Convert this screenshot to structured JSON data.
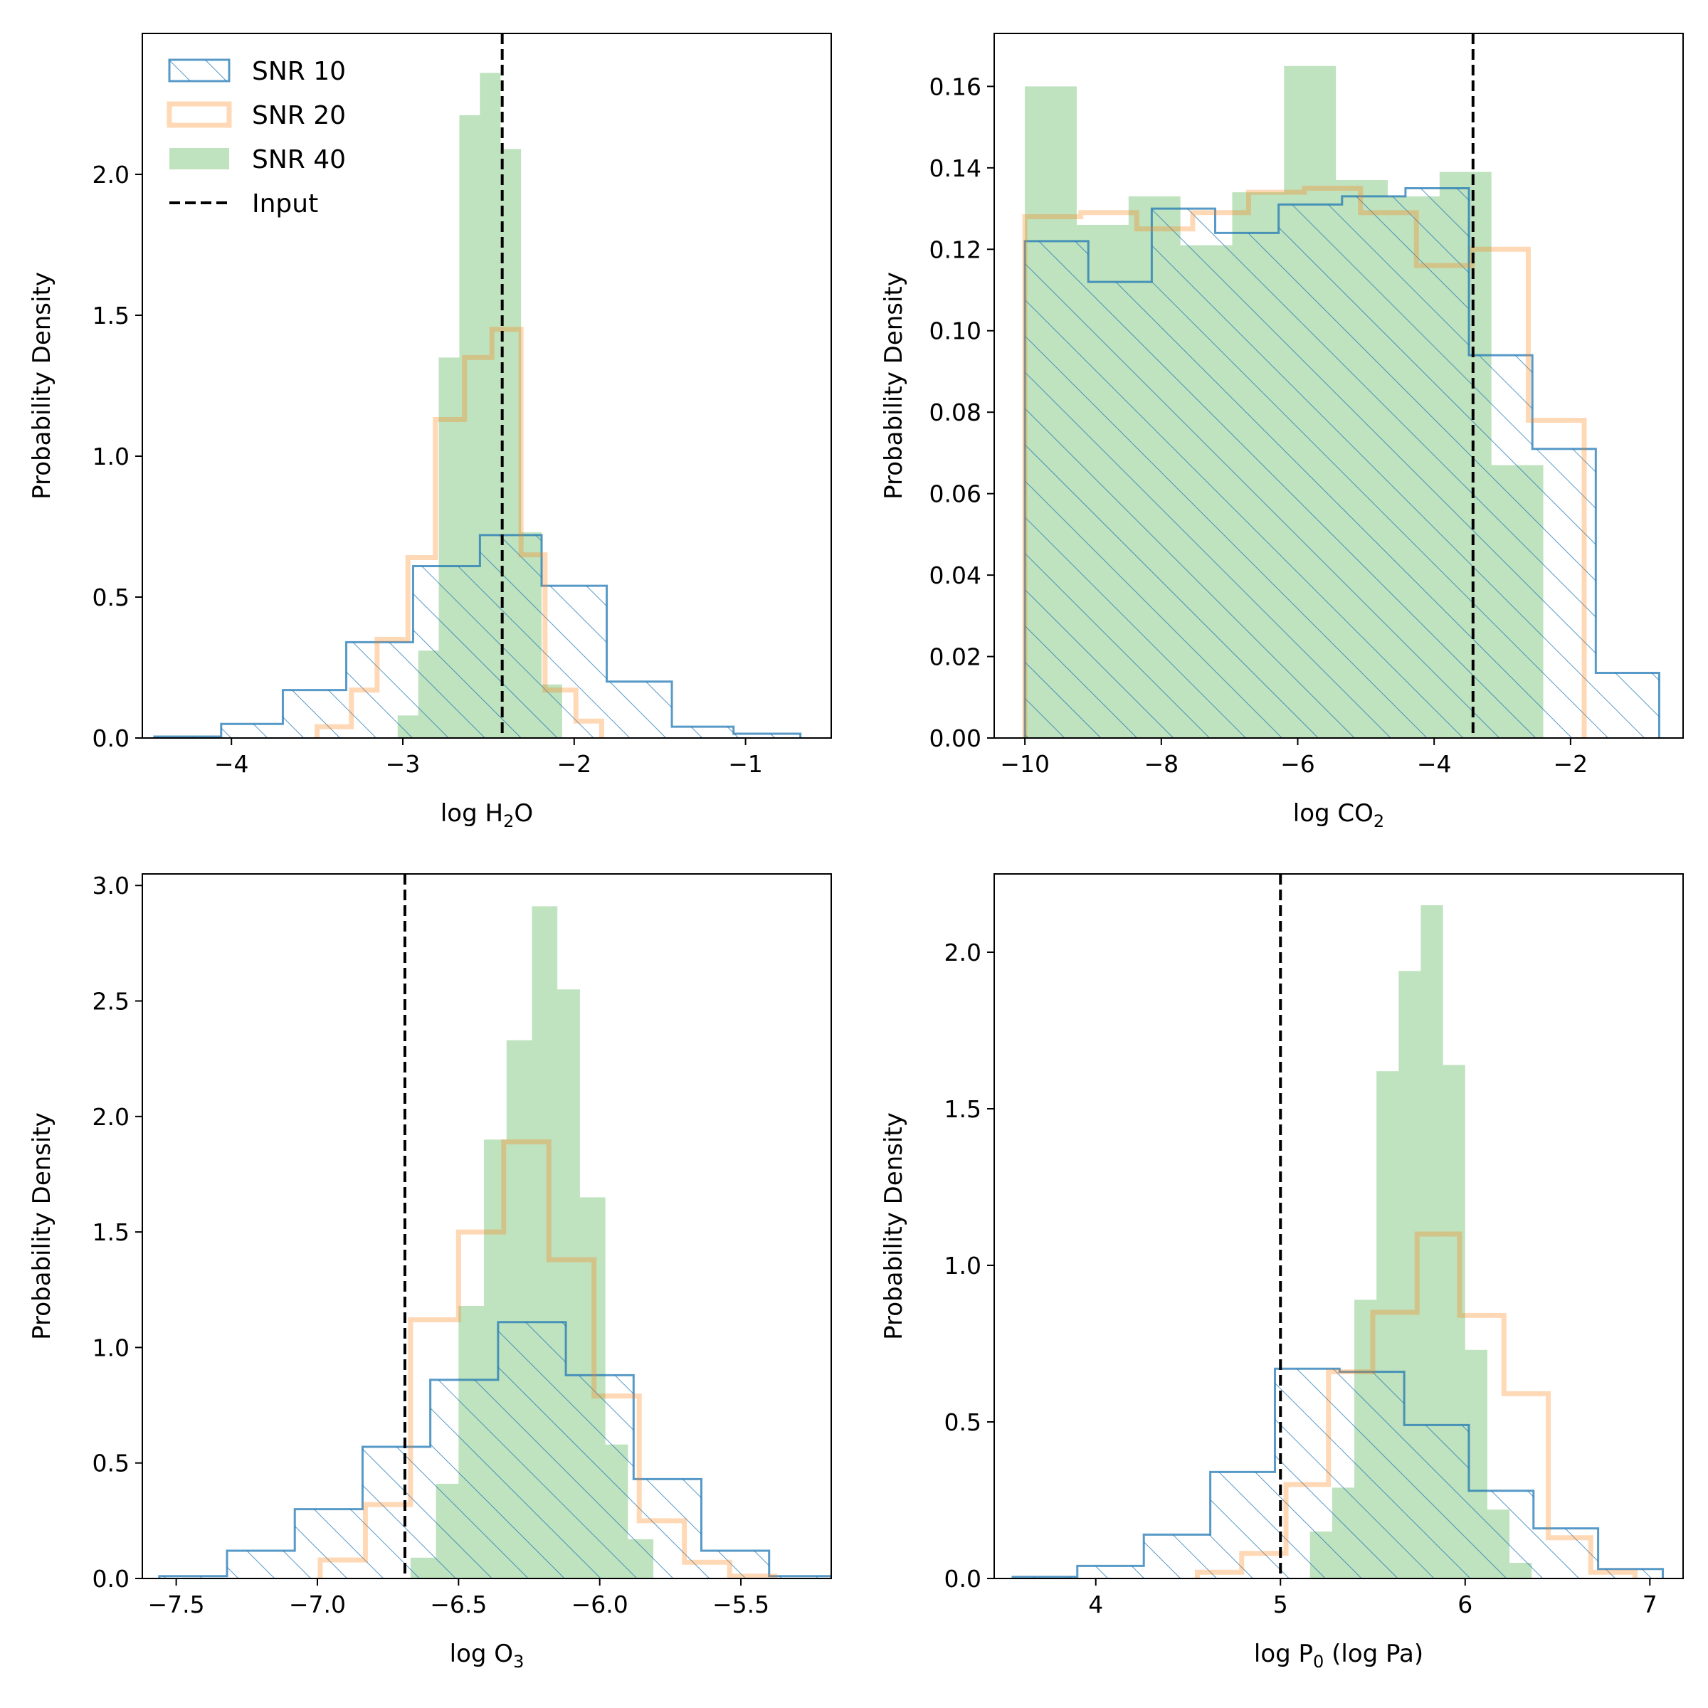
{
  "figure": {
    "series_style": [
      {
        "name": "SNR 10",
        "color": "#1f77b4",
        "style": "hatch-outline",
        "opacity": 0.75
      },
      {
        "name": "SNR 20",
        "color": "#ff7f0e",
        "style": "thick-outline",
        "opacity": 0.3
      },
      {
        "name": "SNR 40",
        "color": "#2ca02c",
        "style": "filled",
        "opacity": 0.3
      }
    ],
    "input_line_color": "#000000",
    "legend_location": "top-left of first panel"
  },
  "chart_data": [
    {
      "type": "histogram",
      "xlabel": "log H",
      "xlabel_sub": "2",
      "xlabel_tail": "O",
      "ylabel": "Probability Density",
      "xlim": [
        -4.52,
        -0.5
      ],
      "ylim": [
        0,
        2.5
      ],
      "xticks": [
        -4,
        -3,
        -2,
        -1
      ],
      "xtick_labels": [
        "−4",
        "−3",
        "−2",
        "−1"
      ],
      "yticks": [
        0,
        0.5,
        1,
        1.5,
        2
      ],
      "ytick_labels": [
        "0.0",
        "0.5",
        "1.0",
        "1.5",
        "2.0"
      ],
      "input": -2.42,
      "legend": [
        "SNR 10",
        "SNR 20",
        "SNR 40",
        "Input"
      ],
      "series": [
        {
          "name": "SNR 10",
          "edges": [
            -4.45,
            -4.06,
            -3.7,
            -3.33,
            -2.94,
            -2.55,
            -2.19,
            -1.81,
            -1.43,
            -1.07,
            -0.68
          ],
          "values": [
            0.005,
            0.05,
            0.17,
            0.34,
            0.61,
            0.72,
            0.54,
            0.2,
            0.04,
            0.015
          ]
        },
        {
          "name": "SNR 20",
          "edges": [
            -3.5,
            -3.3,
            -3.15,
            -2.97,
            -2.81,
            -2.64,
            -2.48,
            -2.31,
            -2.17,
            -1.99,
            -1.84
          ],
          "values": [
            0.04,
            0.17,
            0.35,
            0.64,
            1.13,
            1.35,
            1.45,
            0.65,
            0.17,
            0.06
          ]
        },
        {
          "name": "SNR 40",
          "edges": [
            -3.03,
            -2.91,
            -2.79,
            -2.67,
            -2.55,
            -2.43,
            -2.31,
            -2.19,
            -2.07
          ],
          "values": [
            0.08,
            0.31,
            1.35,
            2.21,
            2.36,
            2.09,
            0.73,
            0.19,
            0.07
          ]
        }
      ]
    },
    {
      "type": "histogram",
      "xlabel": "log CO",
      "xlabel_sub": "2",
      "xlabel_tail": "",
      "ylabel": "Probability Density",
      "xlim": [
        -10.45,
        -0.35
      ],
      "ylim": [
        0,
        0.173
      ],
      "xticks": [
        -10,
        -8,
        -6,
        -4,
        -2
      ],
      "xtick_labels": [
        "−10",
        "−8",
        "−6",
        "−4",
        "−2"
      ],
      "yticks": [
        0,
        0.02,
        0.04,
        0.06,
        0.08,
        0.1,
        0.12,
        0.14,
        0.16
      ],
      "ytick_labels": [
        "0.00",
        "0.02",
        "0.04",
        "0.06",
        "0.08",
        "0.10",
        "0.12",
        "0.14",
        "0.16"
      ],
      "input": -3.43,
      "legend": [],
      "series": [
        {
          "name": "SNR 10",
          "edges": [
            -10.0,
            -9.07,
            -8.14,
            -7.21,
            -6.28,
            -5.35,
            -4.42,
            -3.49,
            -2.56,
            -1.63,
            -0.7
          ],
          "values": [
            0.122,
            0.112,
            0.13,
            0.124,
            0.131,
            0.133,
            0.135,
            0.094,
            0.071,
            0.016
          ]
        },
        {
          "name": "SNR 20",
          "edges": [
            -10.0,
            -9.18,
            -8.36,
            -7.54,
            -6.72,
            -5.9,
            -5.08,
            -4.26,
            -3.44,
            -2.62,
            -1.8
          ],
          "values": [
            0.128,
            0.129,
            0.125,
            0.129,
            0.134,
            0.135,
            0.129,
            0.116,
            0.12,
            0.078
          ]
        },
        {
          "name": "SNR 40",
          "edges": [
            -10.0,
            -9.24,
            -8.48,
            -7.72,
            -6.96,
            -6.2,
            -5.44,
            -4.68,
            -3.92,
            -3.16,
            -2.4
          ],
          "values": [
            0.16,
            0.126,
            0.133,
            0.121,
            0.134,
            0.165,
            0.137,
            0.133,
            0.139,
            0.067
          ]
        }
      ]
    },
    {
      "type": "histogram",
      "xlabel": "log O",
      "xlabel_sub": "3",
      "xlabel_tail": "",
      "ylabel": "Probability Density",
      "xlim": [
        -7.62,
        -5.18
      ],
      "ylim": [
        0,
        3.05
      ],
      "xticks": [
        -7.5,
        -7.0,
        -6.5,
        -6.0,
        -5.5
      ],
      "xtick_labels": [
        "−7.5",
        "−7.0",
        "−6.5",
        "−6.0",
        "−5.5"
      ],
      "yticks": [
        0,
        0.5,
        1,
        1.5,
        2,
        2.5,
        3
      ],
      "ytick_labels": [
        "0.0",
        "0.5",
        "1.0",
        "1.5",
        "2.0",
        "2.5",
        "3.0"
      ],
      "input": -6.69,
      "legend": [],
      "series": [
        {
          "name": "SNR 10",
          "edges": [
            -7.56,
            -7.32,
            -7.08,
            -6.84,
            -6.6,
            -6.36,
            -6.12,
            -5.88,
            -5.64,
            -5.4,
            -5.16
          ],
          "values": [
            0.01,
            0.12,
            0.3,
            0.57,
            0.86,
            1.11,
            0.88,
            0.43,
            0.12,
            0.01
          ]
        },
        {
          "name": "SNR 20",
          "edges": [
            -6.99,
            -6.83,
            -6.67,
            -6.5,
            -6.34,
            -6.18,
            -6.02,
            -5.86,
            -5.7,
            -5.54,
            -5.38
          ],
          "values": [
            0.08,
            0.32,
            1.12,
            1.5,
            1.89,
            1.38,
            0.79,
            0.25,
            0.07,
            0.01
          ]
        },
        {
          "name": "SNR 40",
          "edges": [
            -6.67,
            -6.58,
            -6.5,
            -6.41,
            -6.33,
            -6.24,
            -6.15,
            -6.07,
            -5.98,
            -5.9,
            -5.81
          ],
          "values": [
            0.09,
            0.41,
            1.18,
            1.9,
            2.33,
            2.91,
            2.55,
            1.65,
            0.58,
            0.17
          ]
        }
      ]
    },
    {
      "type": "histogram",
      "xlabel": "log P",
      "xlabel_sub": "0",
      "xlabel_tail": " (log Pa)",
      "ylabel": "Probability Density",
      "xlim": [
        3.45,
        7.18
      ],
      "ylim": [
        0,
        2.25
      ],
      "xticks": [
        4,
        5,
        6,
        7
      ],
      "xtick_labels": [
        "4",
        "5",
        "6",
        "7"
      ],
      "yticks": [
        0,
        0.5,
        1,
        1.5,
        2
      ],
      "ytick_labels": [
        "0.0",
        "0.5",
        "1.0",
        "1.5",
        "2.0"
      ],
      "input": 5.0,
      "legend": [],
      "series": [
        {
          "name": "SNR 10",
          "edges": [
            3.55,
            3.9,
            4.26,
            4.62,
            4.97,
            5.32,
            5.67,
            6.02,
            6.37,
            6.72,
            7.07
          ],
          "values": [
            0.005,
            0.04,
            0.14,
            0.34,
            0.67,
            0.66,
            0.49,
            0.28,
            0.16,
            0.03
          ]
        },
        {
          "name": "SNR 20",
          "edges": [
            4.55,
            4.79,
            5.03,
            5.26,
            5.5,
            5.74,
            5.97,
            6.21,
            6.45,
            6.68,
            6.92
          ],
          "values": [
            0.02,
            0.08,
            0.3,
            0.66,
            0.85,
            1.1,
            0.84,
            0.59,
            0.13,
            0.02
          ]
        },
        {
          "name": "SNR 40",
          "edges": [
            5.16,
            5.28,
            5.4,
            5.52,
            5.64,
            5.76,
            5.88,
            6.0,
            6.12,
            6.24,
            6.36
          ],
          "values": [
            0.15,
            0.29,
            0.89,
            1.62,
            1.94,
            2.15,
            1.64,
            0.73,
            0.22,
            0.05
          ]
        }
      ]
    }
  ]
}
